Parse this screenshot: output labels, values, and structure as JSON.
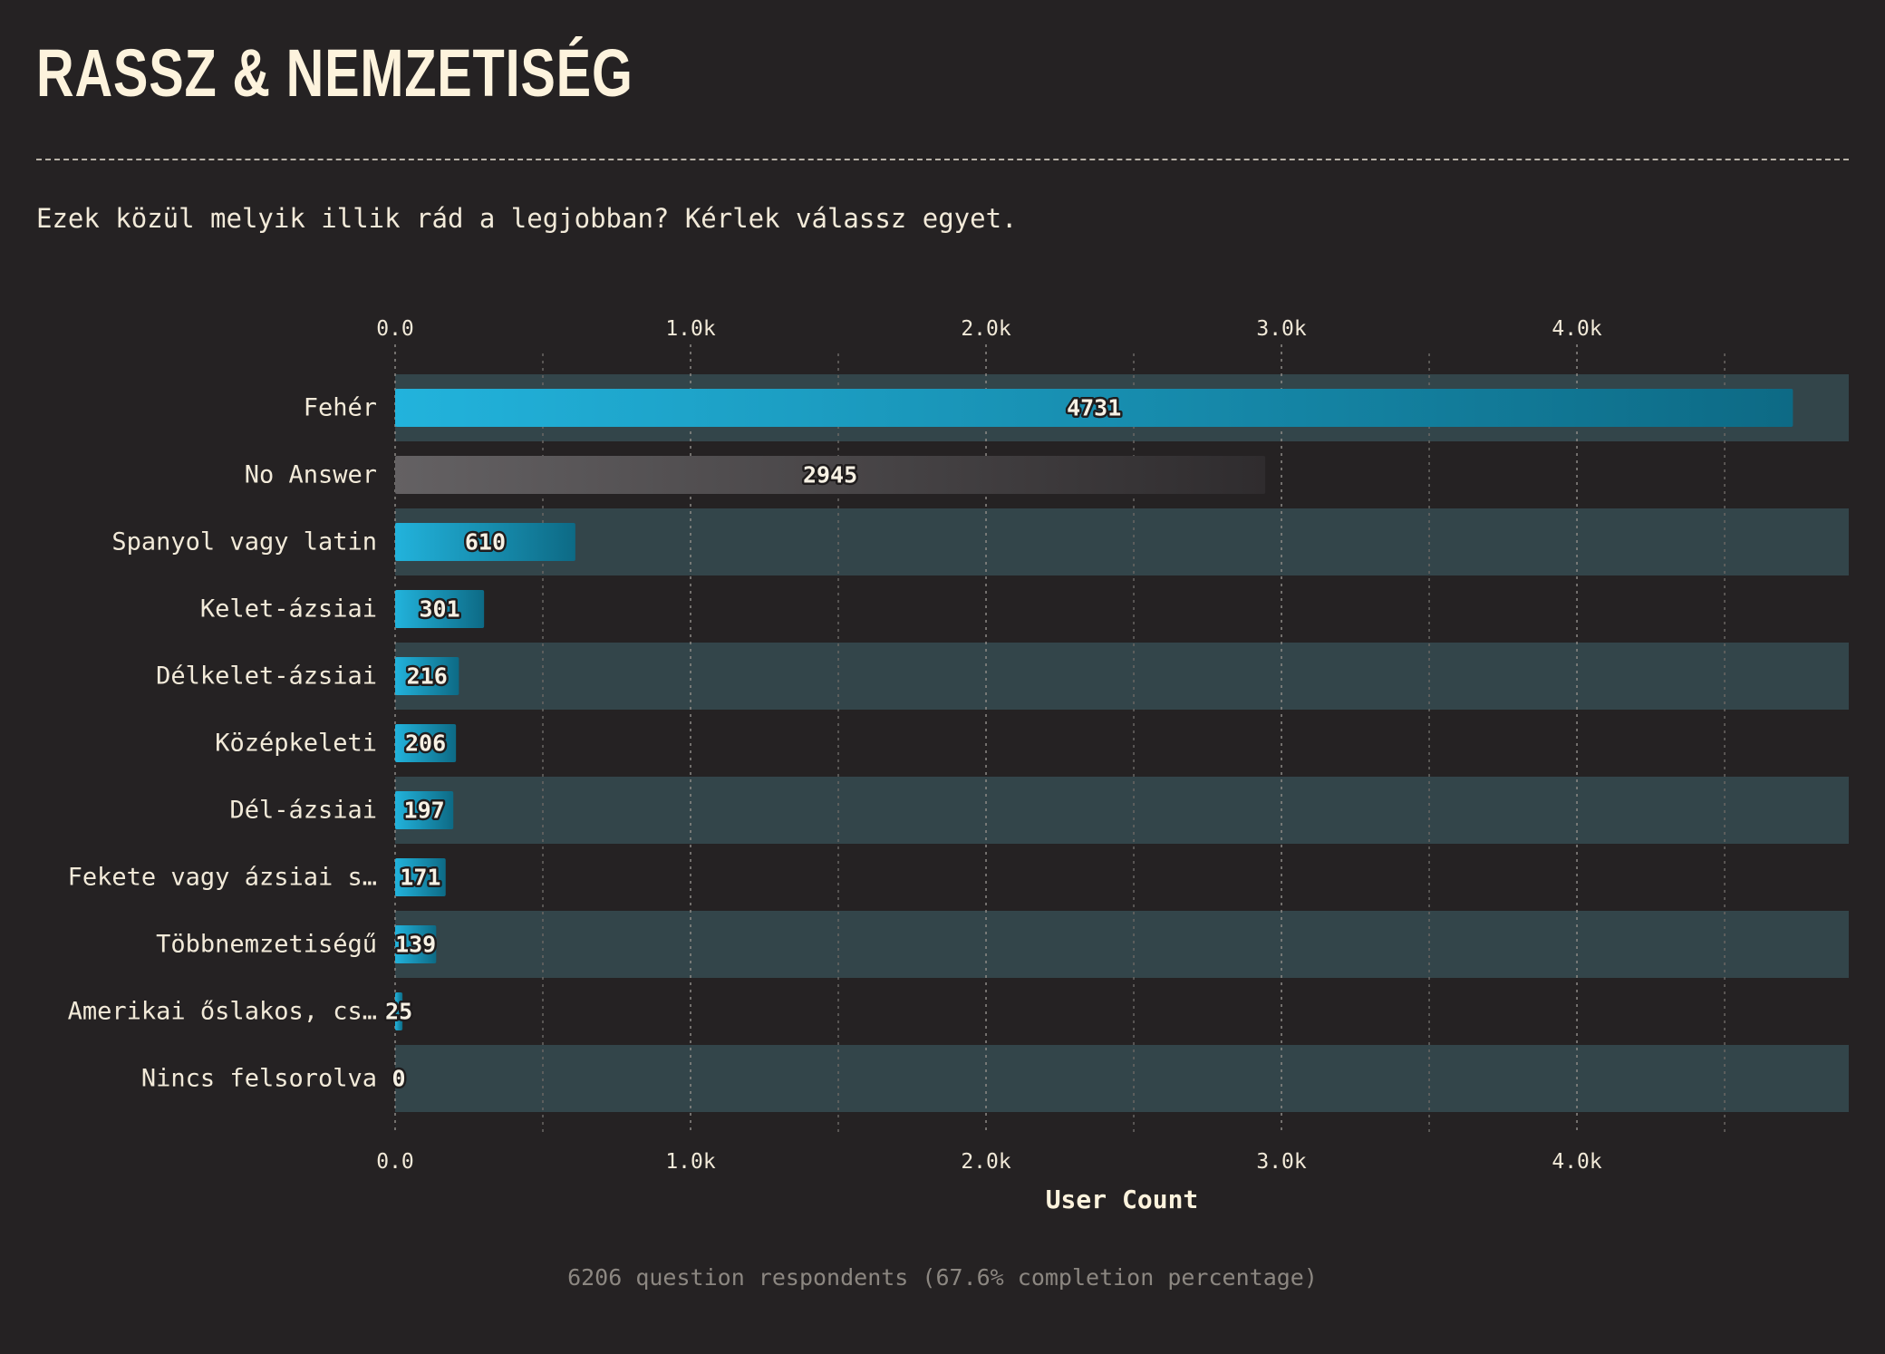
{
  "page": {
    "title": "RASSZ & NEMZETISÉG",
    "question": "Ezek közül melyik illik rád a legjobban? Kérlek válassz egyet.",
    "footer": "6206 question respondents (67.6% completion percentage)"
  },
  "colors": {
    "background": "#252223",
    "row_band": "#33454a",
    "bar_start": "#22b3dc",
    "bar_end": "#0d6a85",
    "no_answer_start": "#646163",
    "no_answer_end": "#2f2c2e",
    "text": "#f2ead9",
    "muted": "#8c8781"
  },
  "chart_data": {
    "type": "bar",
    "orientation": "horizontal",
    "categories": [
      "Fehér",
      "No Answer",
      "Spanyol vagy latin",
      "Kelet-ázsiai",
      "Délkelet-ázsiai",
      "Középkeleti",
      "Dél-ázsiai",
      "Fekete vagy ázsiai s…",
      "Többnemzetiségű",
      "Amerikai őslakos, cs…",
      "Nincs felsorolva"
    ],
    "values": [
      4731,
      2945,
      610,
      301,
      216,
      206,
      197,
      171,
      139,
      25,
      0
    ],
    "highlight": [
      "default",
      "no-answer",
      "default",
      "default",
      "default",
      "default",
      "default",
      "default",
      "default",
      "default",
      "default"
    ],
    "xlabel": "User Count",
    "xlim": [
      0,
      4920
    ],
    "ticks": [
      0,
      1000,
      2000,
      3000,
      4000
    ],
    "tick_labels": [
      "0.0",
      "1.0k",
      "2.0k",
      "3.0k",
      "4.0k"
    ],
    "minor_gridlines": [
      500,
      1500,
      2500,
      3500,
      4500
    ],
    "grid": true,
    "alternating_row_bands": true
  }
}
